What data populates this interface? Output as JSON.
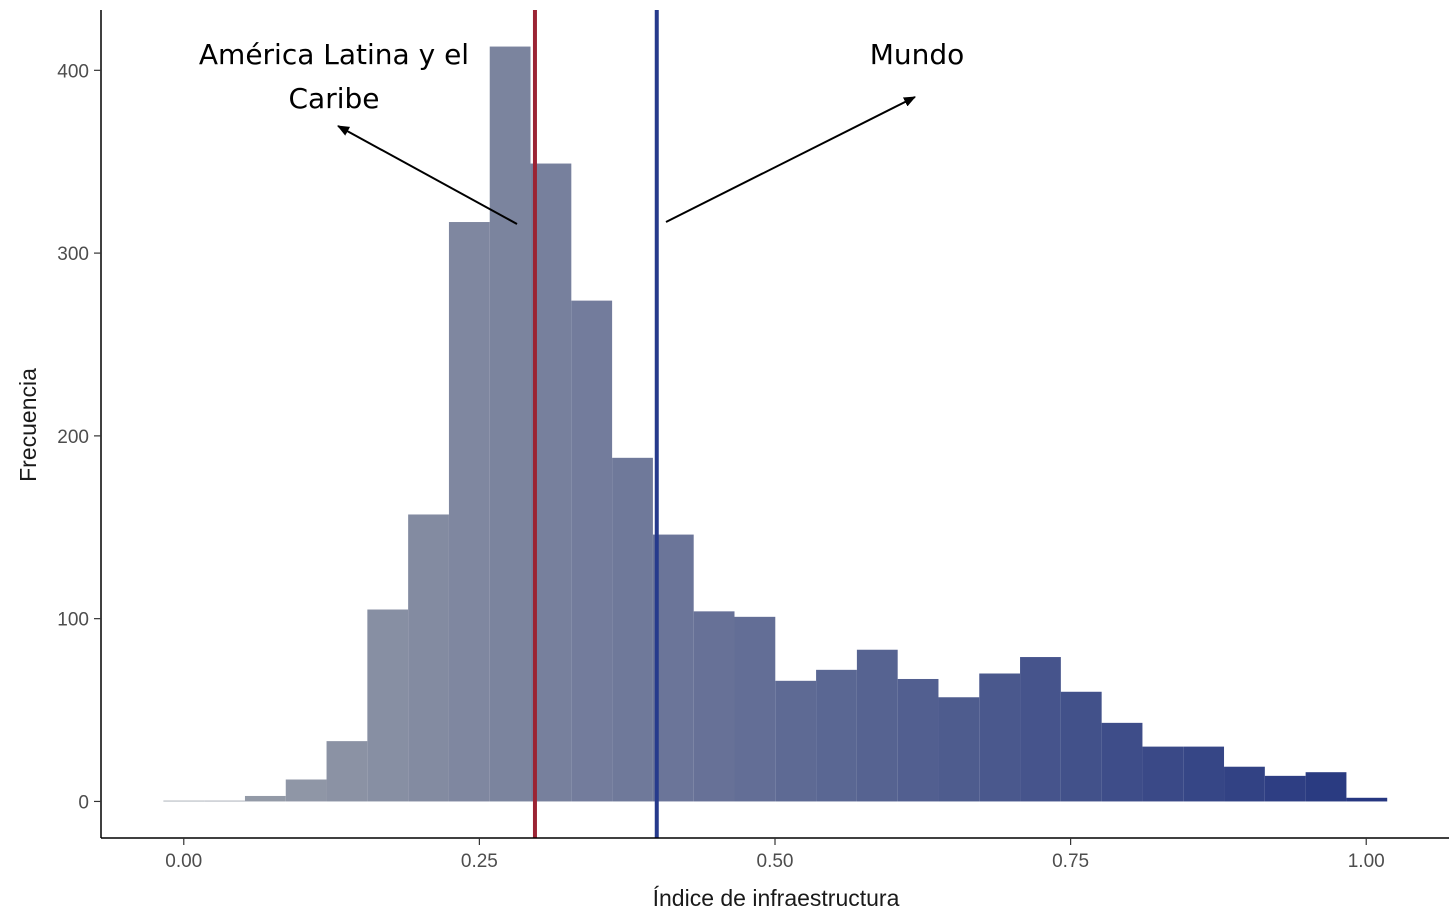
{
  "chart_data": {
    "type": "bar",
    "subtype": "histogram",
    "xlabel": "Índice de infraestructura",
    "ylabel": "Frecuencia",
    "xlim": [
      -0.07,
      1.07
    ],
    "ylim": [
      -20,
      433
    ],
    "x_ticks": [
      0.0,
      0.25,
      0.5,
      0.75,
      1.0
    ],
    "x_tick_labels": [
      "0.00",
      "0.25",
      "0.50",
      "0.75",
      "1.00"
    ],
    "y_ticks": [
      0,
      100,
      200,
      300,
      400
    ],
    "y_tick_labels": [
      "0",
      "100",
      "200",
      "300",
      "400"
    ],
    "bin_width": 0.0345,
    "bin_centers": [
      0.0,
      0.0345,
      0.069,
      0.1035,
      0.138,
      0.1725,
      0.207,
      0.2415,
      0.276,
      0.3105,
      0.345,
      0.3795,
      0.414,
      0.4485,
      0.483,
      0.5175,
      0.552,
      0.5865,
      0.621,
      0.6555,
      0.69,
      0.7245,
      0.759,
      0.7935,
      0.828,
      0.8625,
      0.897,
      0.9315,
      0.966,
      1.0005
    ],
    "values": [
      0,
      0,
      3,
      12,
      33,
      105,
      157,
      317,
      413,
      349,
      274,
      188,
      146,
      104,
      101,
      66,
      72,
      83,
      67,
      57,
      70,
      79,
      60,
      43,
      30,
      30,
      19,
      14,
      16,
      2
    ],
    "grid": false,
    "legend": "none",
    "colors": {
      "bar_start": "#9ba1aa",
      "bar_end": "#263780",
      "axis": "#000000"
    },
    "reference_lines": [
      {
        "label": "América Latina y el Caribe",
        "x": 0.297,
        "color": "#9b2434"
      },
      {
        "label": "Mundo",
        "x": 0.4,
        "color": "#263a8c"
      }
    ],
    "annotations": [
      {
        "text_lines": [
          "América Latina y el",
          "Caribe"
        ]
      },
      {
        "text_lines": [
          "Mundo"
        ]
      }
    ]
  }
}
